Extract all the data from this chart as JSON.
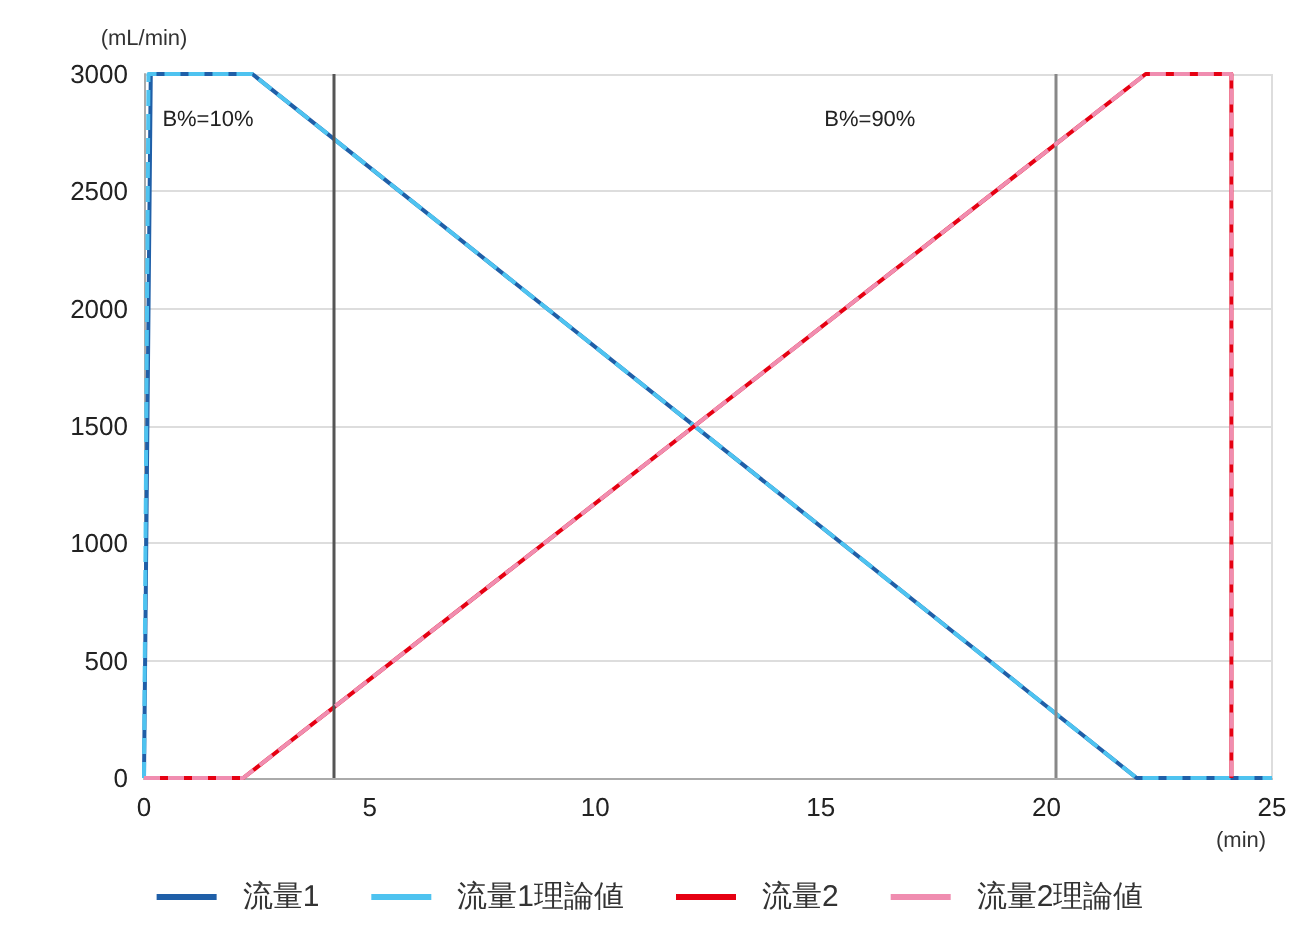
{
  "chart_data": {
    "type": "line",
    "xlabel": "(min)",
    "ylabel": "(mL/min)",
    "xlim": [
      0,
      25
    ],
    "xticks": [
      0,
      5,
      10,
      15,
      20,
      25
    ],
    "ylim": [
      0,
      3000
    ],
    "yticks": [
      0,
      500,
      1000,
      1500,
      2000,
      2500,
      3000
    ],
    "grid": "y",
    "legend": "bottom",
    "marker": "none",
    "series": [
      {
        "name": "流量1",
        "color": "#1f5fa8",
        "line_style": "solid",
        "x": [
          0,
          0.15,
          2.4,
          22,
          25
        ],
        "values": [
          0,
          3000,
          3000,
          0,
          0
        ]
      },
      {
        "name": "流量1理論値",
        "color": "#4ec3f0",
        "line_style": "dashed",
        "x": [
          0,
          0.1,
          2.4,
          22,
          25
        ],
        "values": [
          0,
          3000,
          3000,
          0,
          0
        ]
      },
      {
        "name": "流量2",
        "color": "#e60012",
        "line_style": "solid",
        "x": [
          0,
          2.2,
          22.2,
          24.1,
          24.1
        ],
        "values": [
          0,
          0,
          3000,
          3000,
          0
        ]
      },
      {
        "name": "流量2理論値",
        "color": "#f08db0",
        "line_style": "dashed",
        "x": [
          0,
          2.2,
          22.2,
          24.1,
          24.1
        ],
        "values": [
          0,
          0,
          3000,
          3000,
          0
        ]
      }
    ],
    "ref_lines": [
      {
        "axis": "x",
        "value": 4.2,
        "color": "#555555"
      },
      {
        "axis": "x",
        "value": 20.2,
        "color": "#888888"
      }
    ],
    "annotations": [
      "B%=10%",
      "B%=90%"
    ]
  }
}
